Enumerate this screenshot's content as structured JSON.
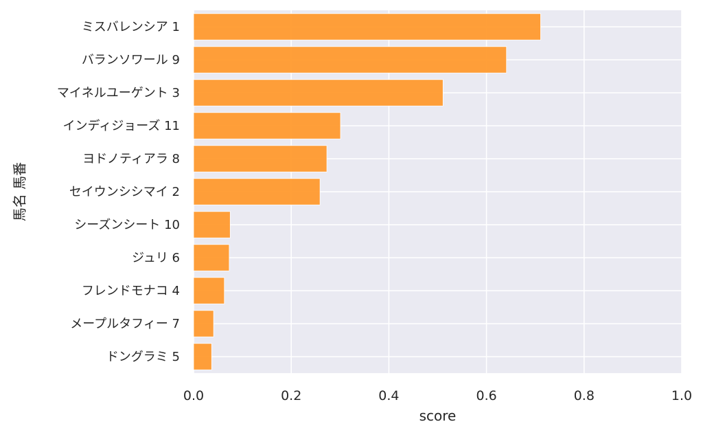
{
  "chart_data": {
    "type": "bar",
    "orientation": "horizontal",
    "categories": [
      "ミスバレンシア 1",
      "バランソワール 9",
      "マイネルユーゲント 3",
      "インディジョーズ 11",
      "ヨドノティアラ 8",
      "セイウンシシマイ 2",
      "シーズンシート 10",
      "ジュリ 6",
      "フレンドモナコ 4",
      "メープルタフィー 7",
      "ドングラミ 5"
    ],
    "values": [
      0.711,
      0.641,
      0.511,
      0.301,
      0.273,
      0.259,
      0.075,
      0.073,
      0.063,
      0.041,
      0.037
    ],
    "xlabel": "score",
    "ylabel": "馬名 馬番",
    "xlim": [
      0.0,
      1.0
    ],
    "xticks": [
      "0.0",
      "0.2",
      "0.4",
      "0.6",
      "0.8",
      "1.0"
    ],
    "grid": true,
    "bar_color": "#ff9a2e",
    "background_color": "#eaeaf2",
    "grid_color": "#ffffff"
  }
}
